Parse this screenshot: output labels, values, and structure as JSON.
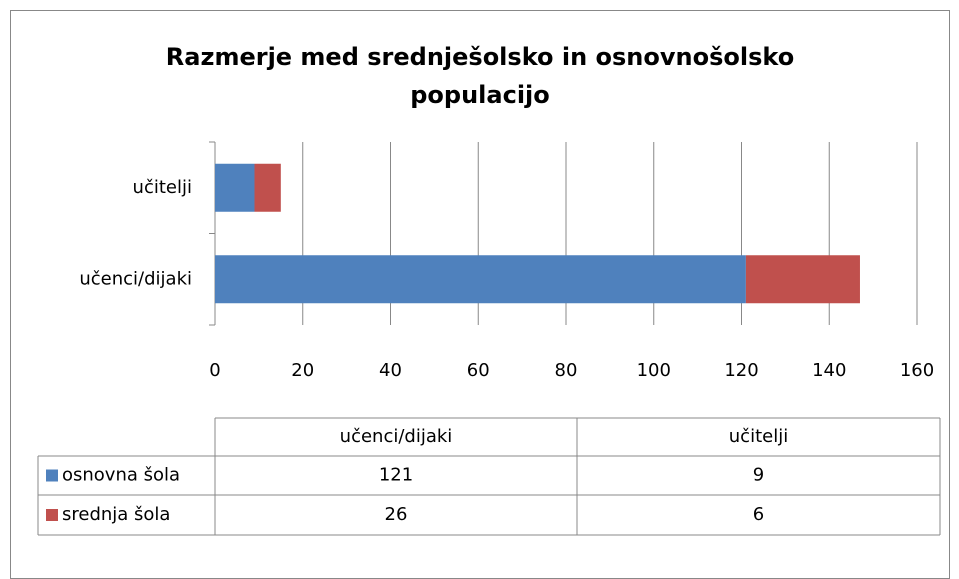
{
  "chart_data": {
    "type": "stacked_bar_horizontal",
    "title": "Razmerje med srednješolsko in osnovnošolsko populacijo",
    "categories": [
      "učenci/dijaki",
      "učitelji"
    ],
    "series": [
      {
        "name": "osnovna šola",
        "color": "#4f81bd",
        "values": [
          121,
          9
        ]
      },
      {
        "name": "srednja šola",
        "color": "#c0504d",
        "values": [
          26,
          6
        ]
      }
    ],
    "xlim": [
      0,
      160
    ],
    "xticks": [
      0,
      20,
      40,
      60,
      80,
      100,
      120,
      140,
      160
    ],
    "grid": true,
    "data_table": true
  }
}
